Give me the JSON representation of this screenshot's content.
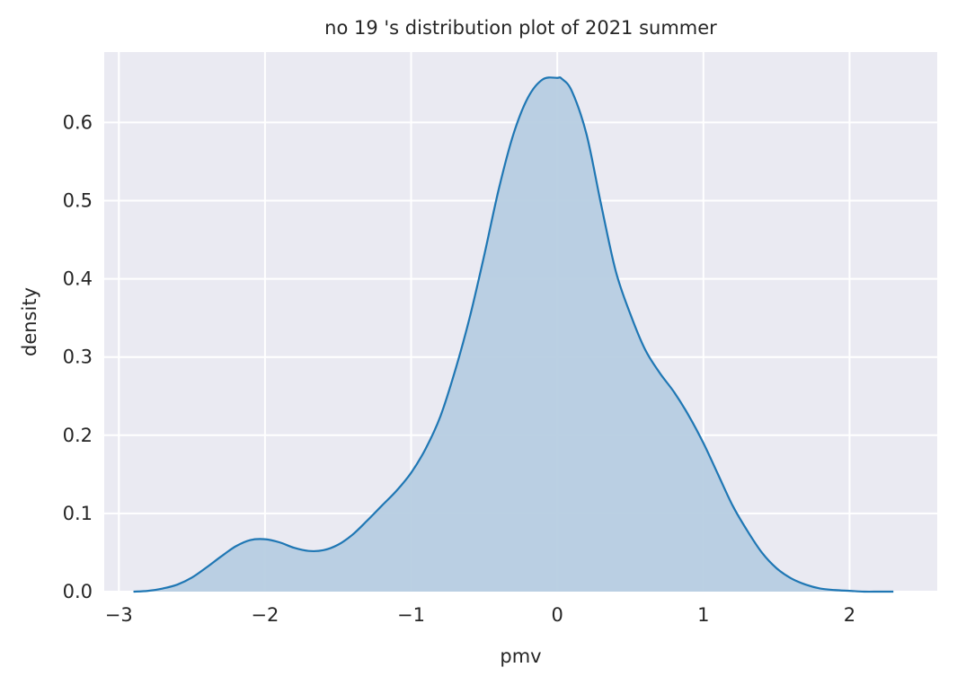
{
  "chart_data": {
    "type": "area",
    "title": "no 19 's distribution plot of 2021 summer",
    "xlabel": "pmv",
    "ylabel": "density",
    "xlim": [
      -3.1,
      2.6
    ],
    "ylim": [
      0.0,
      0.69
    ],
    "xticks": [
      -3,
      -2,
      -1,
      0,
      1,
      2
    ],
    "xtick_labels": [
      "−3",
      "−2",
      "−1",
      "0",
      "1",
      "2"
    ],
    "yticks": [
      0.0,
      0.1,
      0.2,
      0.3,
      0.4,
      0.5,
      0.6
    ],
    "ytick_labels": [
      "0.0",
      "0.1",
      "0.2",
      "0.3",
      "0.4",
      "0.5",
      "0.6"
    ],
    "grid": true,
    "series": [
      {
        "x": [
          -2.9,
          -2.8,
          -2.7,
          -2.6,
          -2.5,
          -2.4,
          -2.3,
          -2.2,
          -2.1,
          -2.0,
          -1.9,
          -1.8,
          -1.7,
          -1.6,
          -1.5,
          -1.4,
          -1.3,
          -1.2,
          -1.1,
          -1.0,
          -0.9,
          -0.8,
          -0.7,
          -0.6,
          -0.5,
          -0.4,
          -0.3,
          -0.2,
          -0.1,
          0.0,
          0.03,
          0.1,
          0.2,
          0.3,
          0.4,
          0.5,
          0.6,
          0.7,
          0.8,
          0.9,
          1.0,
          1.1,
          1.2,
          1.3,
          1.4,
          1.5,
          1.6,
          1.7,
          1.8,
          1.9,
          2.0,
          2.1,
          2.2,
          2.3
        ],
        "y": [
          0.0,
          0.001,
          0.004,
          0.009,
          0.018,
          0.031,
          0.045,
          0.058,
          0.066,
          0.067,
          0.063,
          0.056,
          0.052,
          0.053,
          0.06,
          0.073,
          0.091,
          0.11,
          0.129,
          0.152,
          0.183,
          0.224,
          0.282,
          0.35,
          0.43,
          0.515,
          0.585,
          0.632,
          0.655,
          0.657,
          0.656,
          0.64,
          0.585,
          0.495,
          0.41,
          0.355,
          0.31,
          0.28,
          0.255,
          0.225,
          0.19,
          0.15,
          0.11,
          0.078,
          0.05,
          0.03,
          0.017,
          0.009,
          0.004,
          0.002,
          0.001,
          0.0,
          0.0,
          0.0
        ]
      }
    ],
    "colors": {
      "background": "#eaeaf2",
      "grid": "#ffffff",
      "line": "#1f77b4",
      "fill": "#b7cde2"
    }
  }
}
